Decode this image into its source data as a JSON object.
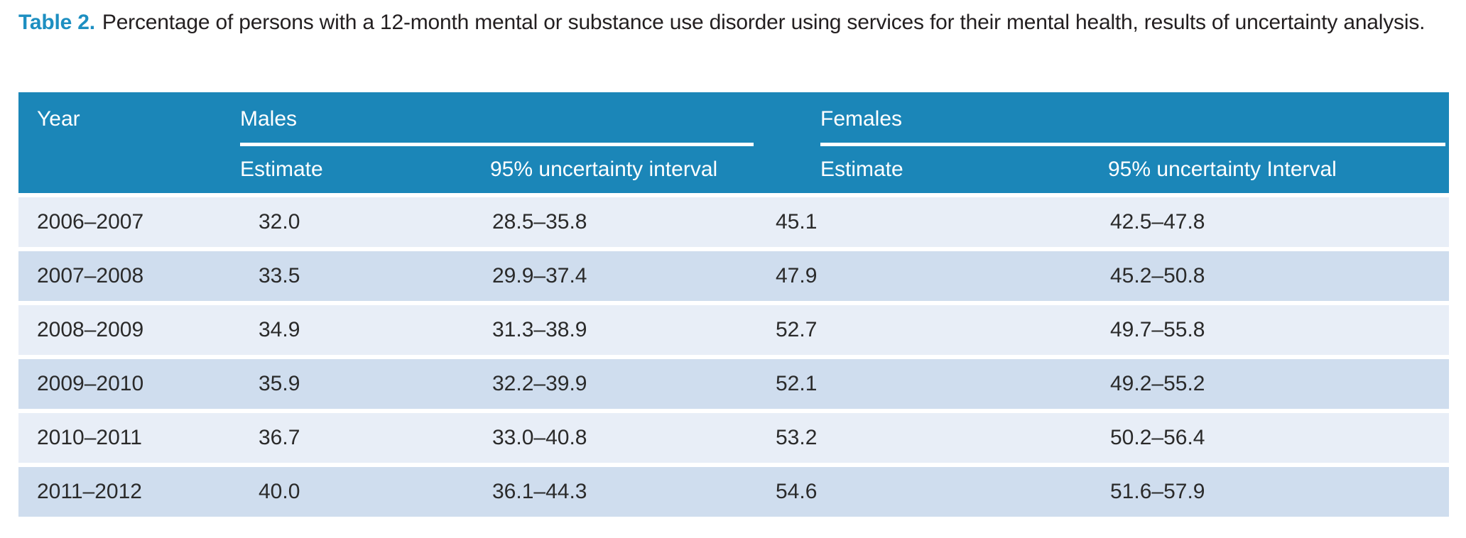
{
  "caption": {
    "label": "Table 2.",
    "text": "Percentage of persons with a 12-month mental or substance use disorder using services for their mental health, results of uncertainty analysis."
  },
  "header": {
    "year": "Year",
    "males_group": "Males",
    "females_group": "Females",
    "males_estimate": "Estimate",
    "males_interval": "95% uncertainty interval",
    "females_estimate": "Estimate",
    "females_interval": "95% uncertainty Interval"
  },
  "rows": [
    {
      "year": "2006–2007",
      "males_estimate": "32.0",
      "males_interval": "28.5–35.8",
      "females_estimate": "45.1",
      "females_interval": "42.5–47.8"
    },
    {
      "year": "2007–2008",
      "males_estimate": "33.5",
      "males_interval": "29.9–37.4",
      "females_estimate": "47.9",
      "females_interval": "45.2–50.8"
    },
    {
      "year": "2008–2009",
      "males_estimate": "34.9",
      "males_interval": "31.3–38.9",
      "females_estimate": "52.7",
      "females_interval": "49.7–55.8"
    },
    {
      "year": "2009–2010",
      "males_estimate": "35.9",
      "males_interval": "32.2–39.9",
      "females_estimate": "52.1",
      "females_interval": "49.2–55.2"
    },
    {
      "year": "2010–2011",
      "males_estimate": "36.7",
      "males_interval": "33.0–40.8",
      "females_estimate": "53.2",
      "females_interval": "50.2–56.4"
    },
    {
      "year": "2011–2012",
      "males_estimate": "40.0",
      "males_interval": "36.1–44.3",
      "females_estimate": "54.6",
      "females_interval": "51.6–57.9"
    }
  ],
  "colors": {
    "header_bg": "#1b86b8",
    "row_light": "#e8eef7",
    "row_dark": "#cfddee",
    "caption_accent": "#1d8fc1",
    "text": "#231f20"
  },
  "chart_data": {
    "type": "table",
    "title": "Table 2. Percentage of persons with a 12-month mental or substance use disorder using services for their mental health, results of uncertainty analysis.",
    "columns": [
      "Year",
      "Males Estimate",
      "Males 95% uncertainty interval",
      "Females Estimate",
      "Females 95% uncertainty Interval"
    ],
    "rows": [
      [
        "2006–2007",
        32.0,
        "28.5–35.8",
        45.1,
        "42.5–47.8"
      ],
      [
        "2007–2008",
        33.5,
        "29.9–37.4",
        47.9,
        "45.2–50.8"
      ],
      [
        "2008–2009",
        34.9,
        "31.3–38.9",
        52.7,
        "49.7–55.8"
      ],
      [
        "2009–2010",
        35.9,
        "32.2–39.9",
        52.1,
        "49.2–55.2"
      ],
      [
        "2010–2011",
        36.7,
        "33.0–40.8",
        53.2,
        "50.2–56.4"
      ],
      [
        "2011–2012",
        40.0,
        "36.1–44.3",
        54.6,
        "51.6–57.9"
      ]
    ]
  }
}
